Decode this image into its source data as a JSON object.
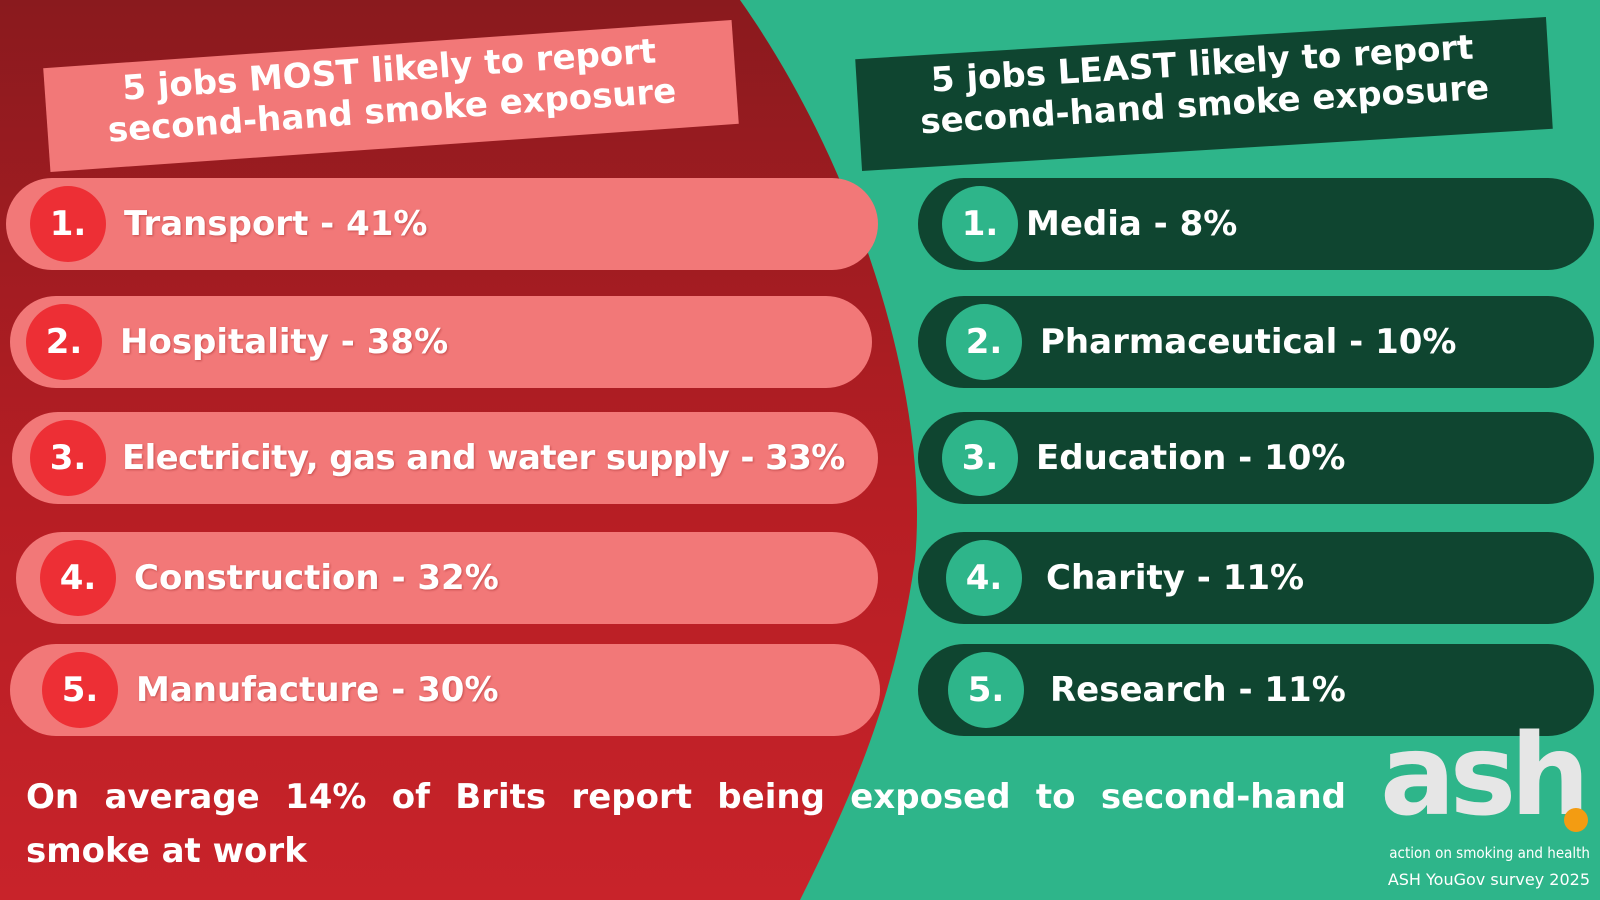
{
  "colors": {
    "left_background": "#c02026",
    "left_background_dark": "#8a1a1e",
    "right_background": "#2eb58a",
    "left_pill": "#f27878",
    "left_number": "#ed2f35",
    "right_pill": "#0f4530",
    "right_number": "#2eb58a",
    "logo_dot": "#f39c12"
  },
  "most": {
    "title_line1": "5 jobs MOST likely to report",
    "title_line2": "second-hand smoke exposure",
    "items": [
      {
        "number": "1.",
        "label": "Transport - 41%"
      },
      {
        "number": "2.",
        "label": "Hospitality - 38%"
      },
      {
        "number": "3.",
        "label": "Electricity, gas and water supply - 33%"
      },
      {
        "number": "4.",
        "label": "Construction - 32%"
      },
      {
        "number": "5.",
        "label": "Manufacture - 30%"
      }
    ]
  },
  "least": {
    "title_line1": "5 jobs LEAST likely to report",
    "title_line2": "second-hand smoke exposure",
    "items": [
      {
        "number": "1.",
        "label": "Media - 8%"
      },
      {
        "number": "2.",
        "label": "Pharmaceutical - 10%"
      },
      {
        "number": "3.",
        "label": "Education - 10%"
      },
      {
        "number": "4.",
        "label": "Charity - 11%"
      },
      {
        "number": "5.",
        "label": "Research - 11%"
      }
    ]
  },
  "footer": {
    "text": "On average 14% of Brits report being exposed to second-hand smoke at work"
  },
  "logo": {
    "word": "ash",
    "tagline": "action on smoking and health",
    "source": "ASH YouGov survey 2025"
  }
}
